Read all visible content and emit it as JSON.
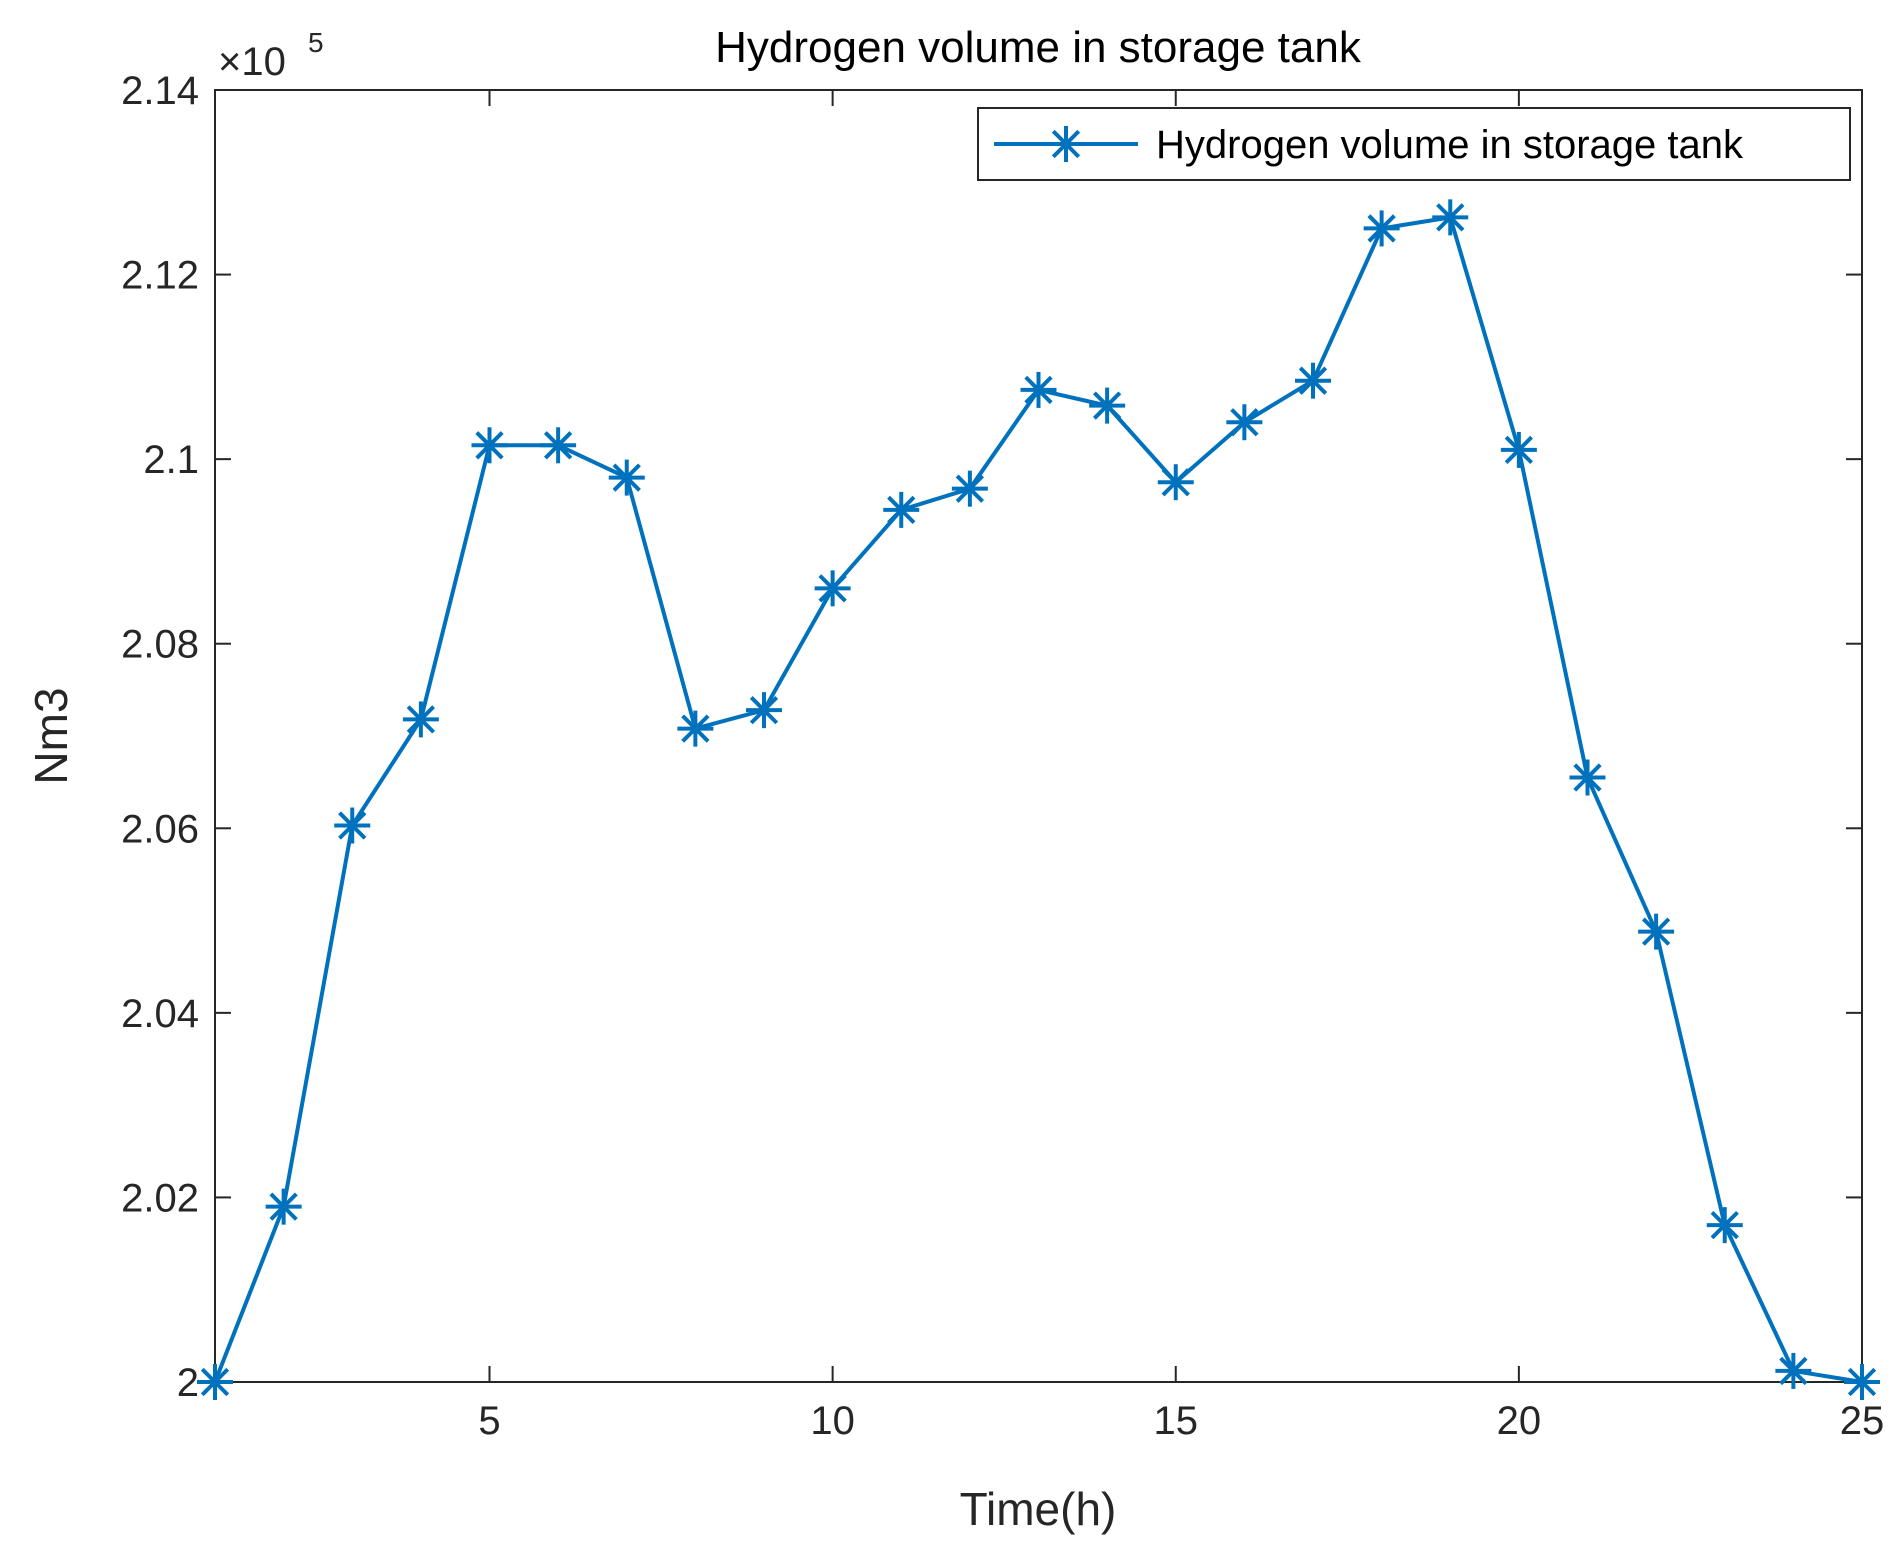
{
  "chart_data": {
    "type": "line",
    "title": "Hydrogen volume in storage tank",
    "xlabel": "Time(h)",
    "ylabel": "Nm3",
    "y_exponent_label": "×10",
    "y_exponent_power": "5",
    "xlim": [
      1,
      25
    ],
    "ylim": [
      2.0,
      2.14
    ],
    "x_ticks": [
      5,
      10,
      15,
      20,
      25
    ],
    "x_tick_labels": [
      "5",
      "10",
      "15",
      "20",
      "25"
    ],
    "y_ticks": [
      2.0,
      2.02,
      2.04,
      2.06,
      2.08,
      2.1,
      2.12,
      2.14
    ],
    "y_tick_labels": [
      "2",
      "2.02",
      "2.04",
      "2.06",
      "2.08",
      "2.1",
      "2.12",
      "2.14"
    ],
    "grid": false,
    "legend_position": "top-right",
    "series": [
      {
        "name": "Hydrogen volume in storage tank",
        "color": "#0072BD",
        "marker": "asterisk",
        "x": [
          1,
          2,
          3,
          4,
          5,
          6,
          7,
          8,
          9,
          10,
          11,
          12,
          13,
          14,
          15,
          16,
          17,
          18,
          19,
          20,
          21,
          22,
          23,
          24,
          25
        ],
        "values": [
          2.0,
          2.019,
          2.0603,
          2.0718,
          2.1015,
          2.1015,
          2.098,
          2.0708,
          2.0728,
          2.086,
          2.0945,
          2.0968,
          2.1075,
          2.1058,
          2.0975,
          2.104,
          2.1085,
          2.125,
          2.1262,
          2.101,
          2.0655,
          2.0488,
          2.017,
          2.0012,
          2.0
        ]
      }
    ]
  }
}
